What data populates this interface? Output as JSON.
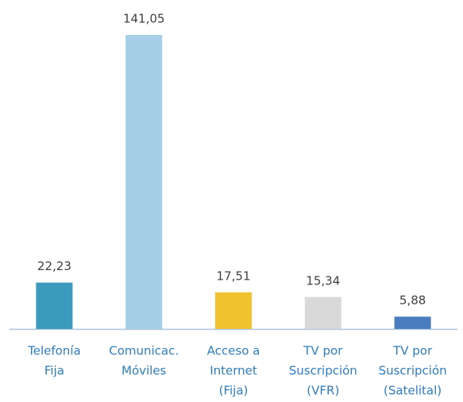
{
  "chart_data": {
    "type": "bar",
    "categories": [
      [
        "Telefonía",
        "Fija"
      ],
      [
        "Comunicac.",
        "Móviles"
      ],
      [
        "Acceso a",
        "Internet",
        "(Fija)"
      ],
      [
        "TV por",
        "Suscripción",
        "(VFR)"
      ],
      [
        "TV por",
        "Suscripción",
        "(Satelital)"
      ]
    ],
    "values": [
      22.23,
      141.05,
      17.51,
      15.34,
      5.88
    ],
    "value_labels": [
      "22,23",
      "141,05",
      "17,51",
      "15,34",
      "5,88"
    ],
    "colors": [
      "#3d9abf",
      "#a5cfe9",
      "#f0c32e",
      "#d9d9d9",
      "#4a7dc0"
    ]
  }
}
